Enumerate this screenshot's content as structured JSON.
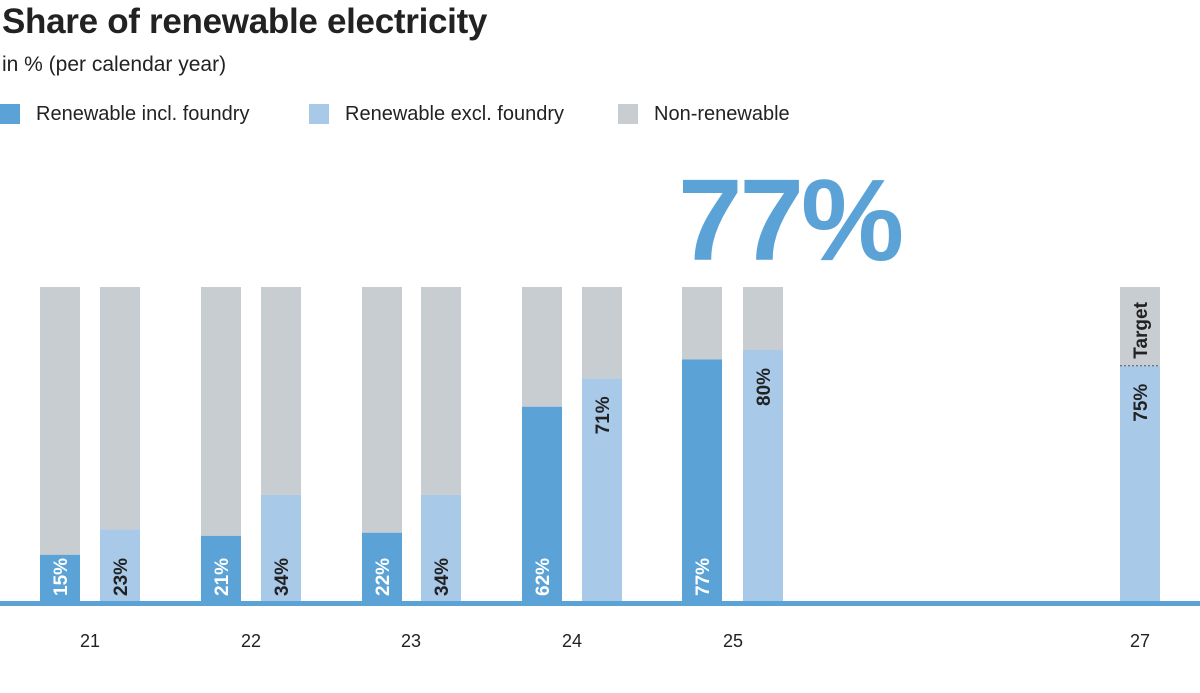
{
  "header": {
    "title": "Share of renewable electricity",
    "subtitle": "in % (per calendar year)"
  },
  "legend": [
    {
      "label": "Renewable incl. foundry",
      "color": "#5ba3d6"
    },
    {
      "label": "Renewable excl. foundry",
      "color": "#a8c9e8"
    },
    {
      "label": "Non-renewable",
      "color": "#c8cdd1"
    }
  ],
  "colors": {
    "incl": "#5ba3d6",
    "excl": "#a8c9e8",
    "non_renewable": "#c8cdd1",
    "baseline": "#5ba3d6",
    "highlight": "#5ba3d6",
    "label_dark": "#222222",
    "label_light": "#ffffff"
  },
  "chart_data": {
    "type": "bar",
    "stacked_to": 100,
    "categories": [
      "21",
      "22",
      "23",
      "24",
      "25",
      "27"
    ],
    "ylim": [
      0,
      100
    ],
    "series": [
      {
        "name": "Renewable incl. foundry",
        "values": [
          15,
          21,
          22,
          62,
          77,
          null
        ],
        "labels": [
          "15%",
          "21%",
          "22%",
          "62%",
          "77%",
          ""
        ]
      },
      {
        "name": "Renewable excl. foundry",
        "values": [
          23,
          34,
          34,
          71,
          80,
          75
        ],
        "labels": [
          "23%",
          "34%",
          "34%",
          "71%",
          "80%",
          "75%"
        ]
      }
    ],
    "highlight_value": "77%",
    "target_label": "Target"
  }
}
